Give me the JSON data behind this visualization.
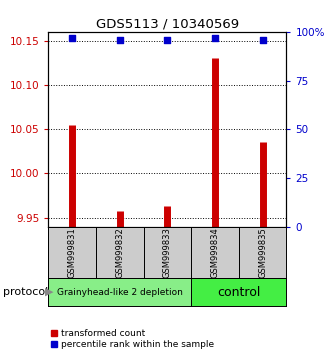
{
  "title": "GDS5113 / 10340569",
  "samples": [
    "GSM999831",
    "GSM999832",
    "GSM999833",
    "GSM999834",
    "GSM999835"
  ],
  "red_values": [
    10.055,
    9.958,
    9.963,
    10.13,
    10.035
  ],
  "blue_values": [
    97,
    96,
    96,
    97,
    96
  ],
  "ylim_left": [
    9.94,
    10.16
  ],
  "ylim_right": [
    0,
    100
  ],
  "left_ticks": [
    9.95,
    10.0,
    10.05,
    10.1,
    10.15
  ],
  "right_ticks": [
    0,
    25,
    50,
    75,
    100
  ],
  "right_tick_labels": [
    "0",
    "25",
    "50",
    "75",
    "100%"
  ],
  "ytick_color_left": "#cc0000",
  "ytick_color_right": "#0000cc",
  "red_color": "#cc0000",
  "blue_color": "#0000cc",
  "bar_bottom": 9.94,
  "groups": [
    {
      "label": "Grainyhead-like 2 depletion",
      "indices": [
        0,
        1,
        2
      ],
      "color": "#88ee88",
      "text_size": 6.5
    },
    {
      "label": "control",
      "indices": [
        3,
        4
      ],
      "color": "#44ee44",
      "text_size": 9
    }
  ],
  "protocol_label": "protocol",
  "legend_red": "transformed count",
  "legend_blue": "percentile rank within the sample",
  "sample_bg": "#cccccc",
  "plot_bg": "#ffffff",
  "figsize": [
    3.33,
    3.54
  ],
  "dpi": 100
}
